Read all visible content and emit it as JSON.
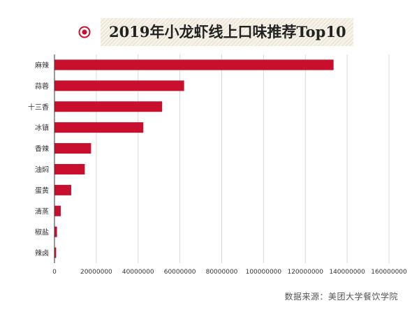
{
  "title": "2019年小龙虾线上口味推荐Top10",
  "source": "数据来源：美团大学餐饮学院",
  "colors": {
    "bar": "#c8102e",
    "icon": "#c8102e",
    "grid": "#d9d9d9",
    "axis": "#333333",
    "text": "#333333"
  },
  "chart_data": {
    "type": "bar",
    "orientation": "horizontal",
    "categories": [
      "麻辣",
      "蒜蓉",
      "十三香",
      "冰镇",
      "香辣",
      "油焖",
      "蛋黄",
      "清蒸",
      "椒盐",
      "辣卤"
    ],
    "values": [
      133500000,
      62000000,
      51500000,
      42500000,
      17500000,
      14500000,
      8000000,
      3000000,
      1200000,
      800000
    ],
    "xlim": [
      0,
      160000000
    ],
    "xticks": [
      "0",
      "20000000",
      "40000000",
      "60000000",
      "80000000",
      "100000000",
      "120000000",
      "140000000",
      "160000000"
    ],
    "xtick_values": [
      0,
      20000000,
      40000000,
      60000000,
      80000000,
      100000000,
      120000000,
      140000000,
      160000000
    ],
    "grid": true,
    "legend": "none"
  }
}
